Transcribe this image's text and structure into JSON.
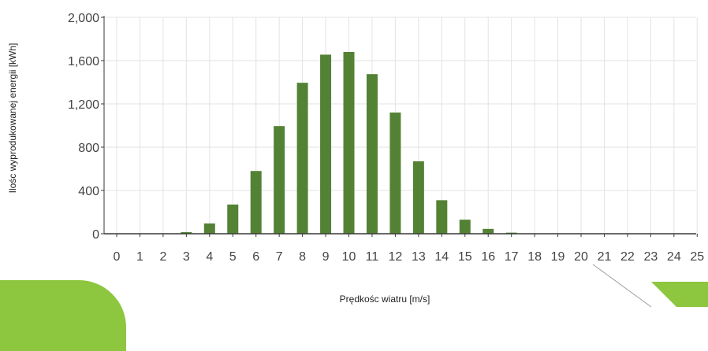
{
  "colors": {
    "bar": "#548235",
    "grid": "#e3e3e3",
    "axis": "#3a3a3a",
    "accent": "#8dc63f"
  },
  "chart_data": {
    "type": "bar",
    "title": "",
    "xlabel": "Prędkośc wiatru [m/s]",
    "ylabel": "Ilośc wyprodukowanej energii [kWh]",
    "categories": [
      "0",
      "1",
      "2",
      "3",
      "4",
      "5",
      "6",
      "7",
      "8",
      "9",
      "10",
      "11",
      "12",
      "13",
      "14",
      "15",
      "16",
      "17",
      "18",
      "19",
      "20",
      "21",
      "22",
      "23",
      "24",
      "25"
    ],
    "values": [
      0,
      0,
      0,
      15,
      95,
      270,
      580,
      995,
      1395,
      1655,
      1680,
      1475,
      1120,
      670,
      310,
      130,
      45,
      10,
      0,
      0,
      0,
      0,
      0,
      0,
      0,
      0
    ],
    "yticks": [
      "0",
      "400",
      "800",
      "1,200",
      "1,600",
      "2,000"
    ],
    "ylim": [
      0,
      2000
    ],
    "grid": true
  }
}
